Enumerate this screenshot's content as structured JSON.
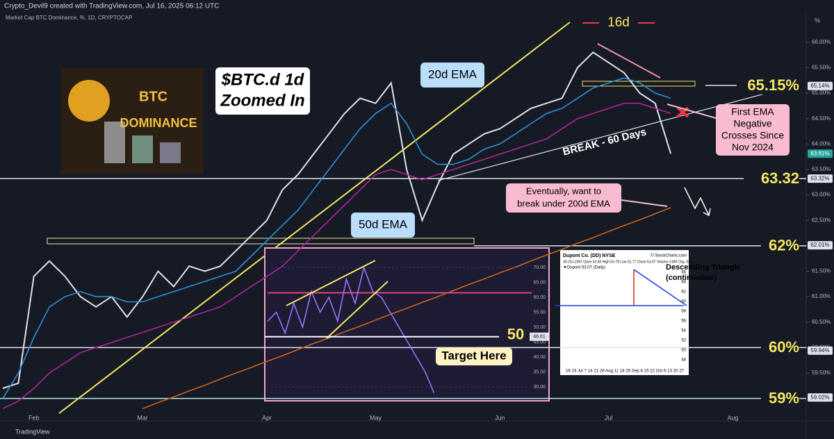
{
  "header": {
    "credit": "Crypto_Devil9 created with TradingView.com, Jul 16, 2025 06:12 UTC",
    "symbol": "Market Cap BTC Dominance, %, 1D, CRYPTOCAP"
  },
  "footer": "TradingView",
  "image": {
    "line1": "BTC",
    "line2": "DOMINANCE"
  },
  "chart_data": {
    "type": "line",
    "categories": [
      null,
      null,
      "Feb",
      null,
      null,
      null,
      null,
      null,
      null,
      "Mar",
      null,
      null,
      null,
      null,
      null,
      null,
      null,
      "Apr",
      null,
      null,
      null,
      null,
      null,
      null,
      "May",
      null,
      null,
      null,
      null,
      null,
      null,
      null,
      "Jun",
      null,
      null,
      null,
      null,
      null,
      null,
      "Jul",
      null,
      null,
      null,
      null,
      null,
      null,
      null,
      "Aug"
    ],
    "series": [
      {
        "color": "#e0e3eb",
        "values": [
          59.2,
          59.3,
          61.4,
          61.7,
          61.4,
          61.0,
          60.8,
          61.0,
          60.6,
          61.0,
          61.5,
          61.2,
          61.6,
          61.5,
          61.6,
          61.9,
          62.2,
          62.5,
          63.1,
          63.4,
          63.8,
          64.2,
          64.6,
          64.9,
          64.8,
          65.2,
          63.5,
          62.5,
          63.2,
          63.8,
          64.0,
          64.2,
          64.3,
          64.5,
          64.7,
          64.8,
          64.9,
          65.5,
          65.8,
          65.6,
          65.4,
          65.0,
          64.8,
          63.81,
          null,
          null,
          null,
          null
        ]
      },
      {
        "name": "20d EMA",
        "color": "#2f8fd8",
        "values": [
          59.0,
          59.5,
          60.2,
          60.8,
          61.0,
          61.1,
          61.0,
          61.0,
          60.9,
          60.9,
          61.0,
          61.1,
          61.2,
          61.3,
          61.4,
          61.5,
          61.8,
          62.1,
          62.4,
          62.7,
          63.1,
          63.5,
          63.9,
          64.3,
          64.6,
          64.8,
          64.4,
          63.8,
          63.6,
          63.6,
          63.7,
          63.9,
          64.0,
          64.2,
          64.4,
          64.6,
          64.7,
          64.9,
          65.1,
          65.2,
          65.3,
          65.2,
          65.0,
          64.9,
          null,
          null,
          null,
          null
        ]
      },
      {
        "name": "50d EMA",
        "color": "#b0249a",
        "values": [
          58.8,
          58.95,
          59.2,
          59.5,
          59.7,
          59.9,
          60.0,
          60.1,
          60.2,
          60.3,
          60.4,
          60.5,
          60.6,
          60.7,
          60.8,
          61.0,
          61.2,
          61.4,
          61.6,
          61.9,
          62.2,
          62.5,
          62.8,
          63.1,
          63.4,
          63.5,
          63.4,
          63.3,
          63.4,
          63.5,
          63.6,
          63.7,
          63.8,
          63.9,
          64.0,
          64.1,
          64.3,
          64.5,
          64.6,
          64.7,
          64.8,
          64.8,
          64.7,
          64.6,
          null,
          null,
          null,
          null
        ]
      },
      {
        "color": "#c8651b",
        "values": [
          null,
          null,
          null,
          null,
          null,
          null,
          null,
          null,
          null,
          58.8,
          58.92,
          59.03,
          59.15,
          59.26,
          59.38,
          59.5,
          59.61,
          59.73,
          59.84,
          59.96,
          60.08,
          60.19,
          60.31,
          60.42,
          60.54,
          60.66,
          60.77,
          60.89,
          61.0,
          61.12,
          61.24,
          61.35,
          61.47,
          61.58,
          61.7,
          61.82,
          61.93,
          62.05,
          62.16,
          62.28,
          62.4,
          62.51,
          62.63,
          62.75,
          null,
          null,
          null,
          null
        ]
      }
    ],
    "ylim": [
      58.75,
      66.42
    ],
    "yticks": [
      {
        "value": 66,
        "label": "66.00%"
      },
      {
        "value": 65.5,
        "label": "65.50%"
      },
      {
        "value": 65,
        "label": "65.00%"
      },
      {
        "value": 64.5,
        "label": "64.50%"
      },
      {
        "value": 64,
        "label": "64.00%"
      },
      {
        "value": 63.5,
        "label": "63.50%"
      },
      {
        "value": 63,
        "label": "63.00%"
      },
      {
        "value": 62.5,
        "label": "62.50%"
      },
      {
        "value": 62,
        "label": "62.00%"
      },
      {
        "value": 61.5,
        "label": "61.50%"
      },
      {
        "value": 61,
        "label": "61.00%"
      },
      {
        "value": 60.5,
        "label": "60.50%"
      },
      {
        "value": 60,
        "label": "60.00%"
      },
      {
        "value": 59.5,
        "label": "59.50%"
      }
    ],
    "axis_unit": "%",
    "levels": [
      {
        "value": 65.15,
        "label": "65.15%"
      },
      {
        "value": 63.32,
        "label": "63.32"
      },
      {
        "value": 62,
        "label": "62%"
      },
      {
        "value": 60,
        "label": "60%"
      },
      {
        "value": 59,
        "label": "59%"
      }
    ],
    "price_tags": [
      {
        "value": 65.14,
        "label": "65.14%"
      },
      {
        "value": 63.81,
        "label": "63.81%"
      },
      {
        "value": 63.32,
        "label": "63.32%"
      },
      {
        "value": 62.01,
        "label": "62.01%"
      },
      {
        "value": 59.94,
        "label": "59.94%"
      },
      {
        "value": 59.02,
        "label": "59.02%"
      }
    ],
    "annotations": {
      "title1": "$BTC.d 1d",
      "title2": "Zoomed In",
      "ema20": "20d EMA",
      "ema50": "50d EMA",
      "break": "BREAK - 60 Days",
      "days": "16d",
      "eventually1": "Eventually, want to",
      "eventually2": "break under 200d EMA",
      "cross1": "First EMA",
      "cross2": "Negative",
      "cross3": "Crosses Since",
      "cross4": "Nov 2024"
    }
  },
  "insets": {
    "rsi": {
      "values": [
        52,
        55,
        48,
        58,
        50,
        62,
        55,
        60,
        52,
        66,
        58,
        70,
        62,
        60,
        55,
        50,
        45,
        40,
        35,
        28
      ],
      "ylim": [
        25.35,
        76.5
      ],
      "yticks": [
        {
          "value": 70,
          "label": "70.00"
        },
        {
          "value": 65,
          "label": "65.00"
        },
        {
          "value": 60,
          "label": "60.00"
        },
        {
          "value": 55,
          "label": "55.00"
        },
        {
          "value": 50,
          "label": "50.00"
        },
        {
          "value": 45,
          "label": "45.00"
        },
        {
          "value": 40,
          "label": "40.00"
        },
        {
          "value": 35,
          "label": "35.00"
        },
        {
          "value": 30,
          "label": "30.00"
        }
      ],
      "level": {
        "value": 46.81,
        "label": "46.81"
      },
      "level_text": "50",
      "target": "Target Here"
    },
    "dupont": {
      "title": "Dupont Co. (DD)  NYSE",
      "source": "© StockCharts.com",
      "quote": "30-Oct-1997 Open 52.60 High 53.78 Low 51.77 Close 53.07 Volume 3.8M Chg -0.47",
      "legend": "▼Dupont 53.07 (Daily)",
      "pattern1": "Descending Triangle",
      "pattern2": "(continuation)",
      "dates": "16  23  Jul 7  14  21  28 Aug 11  18  25 Sep 8  15  22  Oct 6  13  20  27",
      "prices": [
        66,
        64,
        62,
        60,
        58,
        56,
        54,
        52,
        50,
        48
      ]
    }
  }
}
